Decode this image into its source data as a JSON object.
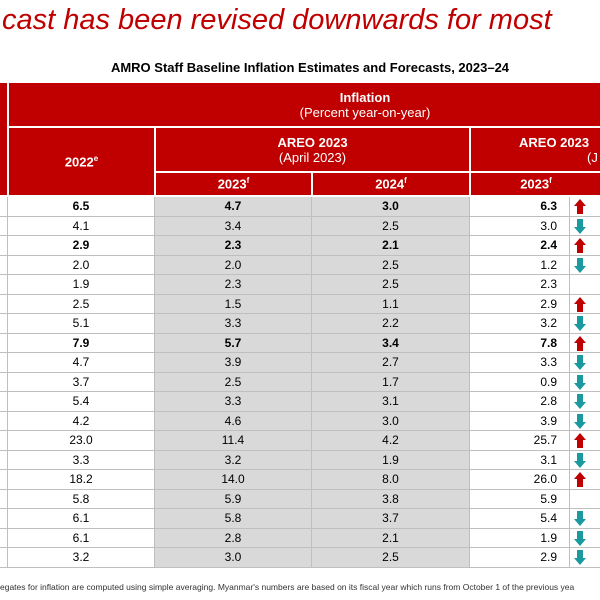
{
  "title": "cast has been revised downwards for most",
  "subtitle": "AMRO Staff Baseline Inflation Estimates and Forecasts, 2023–24",
  "header": {
    "group": "Inflation",
    "group_note": "(Percent year-on-year)",
    "first_col": {
      "text": "2022",
      "sup": "e"
    },
    "areo_april": {
      "title": "AREO 2023",
      "note": "(April 2023)"
    },
    "areo_july": {
      "title": "AREO 2023",
      "note": "(J"
    },
    "years": [
      {
        "text": "2023",
        "sup": "f"
      },
      {
        "text": "2024",
        "sup": "f"
      },
      {
        "text": "2023",
        "sup": "f"
      }
    ]
  },
  "table": {
    "rows": [
      {
        "cells": [
          "6.5",
          "4.7",
          "3.0",
          "6.3"
        ],
        "arrow": "up",
        "bold": true
      },
      {
        "cells": [
          "4.1",
          "3.4",
          "2.5",
          "3.0"
        ],
        "arrow": "down"
      },
      {
        "cells": [
          "2.9",
          "2.3",
          "2.1",
          "2.4"
        ],
        "arrow": "up",
        "bold": true
      },
      {
        "cells": [
          "2.0",
          "2.0",
          "2.5",
          "1.2"
        ],
        "arrow": "down"
      },
      {
        "cells": [
          "1.9",
          "2.3",
          "2.5",
          "2.3"
        ]
      },
      {
        "cells": [
          "2.5",
          "1.5",
          "1.1",
          "2.9"
        ],
        "arrow": "up"
      },
      {
        "cells": [
          "5.1",
          "3.3",
          "2.2",
          "3.2"
        ],
        "arrow": "down"
      },
      {
        "cells": [
          "7.9",
          "5.7",
          "3.4",
          "7.8"
        ],
        "arrow": "up",
        "bold": true
      },
      {
        "cells": [
          "4.7",
          "3.9",
          "2.7",
          "3.3"
        ],
        "arrow": "down"
      },
      {
        "cells": [
          "3.7",
          "2.5",
          "1.7",
          "0.9"
        ],
        "arrow": "down"
      },
      {
        "cells": [
          "5.4",
          "3.3",
          "3.1",
          "2.8"
        ],
        "arrow": "down"
      },
      {
        "cells": [
          "4.2",
          "4.6",
          "3.0",
          "3.9"
        ],
        "arrow": "down"
      },
      {
        "cells": [
          "23.0",
          "11.4",
          "4.2",
          "25.7"
        ],
        "arrow": "up"
      },
      {
        "cells": [
          "3.3",
          "3.2",
          "1.9",
          "3.1"
        ],
        "arrow": "down"
      },
      {
        "cells": [
          "18.2",
          "14.0",
          "8.0",
          "26.0"
        ],
        "arrow": "up"
      },
      {
        "cells": [
          "5.8",
          "5.9",
          "3.8",
          "5.9"
        ]
      },
      {
        "cells": [
          "6.1",
          "5.8",
          "3.7",
          "5.4"
        ],
        "arrow": "down"
      },
      {
        "cells": [
          "6.1",
          "2.8",
          "2.1",
          "1.9"
        ],
        "arrow": "down"
      },
      {
        "cells": [
          "3.2",
          "3.0",
          "2.5",
          "2.9"
        ],
        "arrow": "down"
      }
    ]
  },
  "footnote": "egates for inflation are computed using simple averaging. Myanmar's numbers are based on its fiscal year which runs from October 1 of the previous yea"
}
